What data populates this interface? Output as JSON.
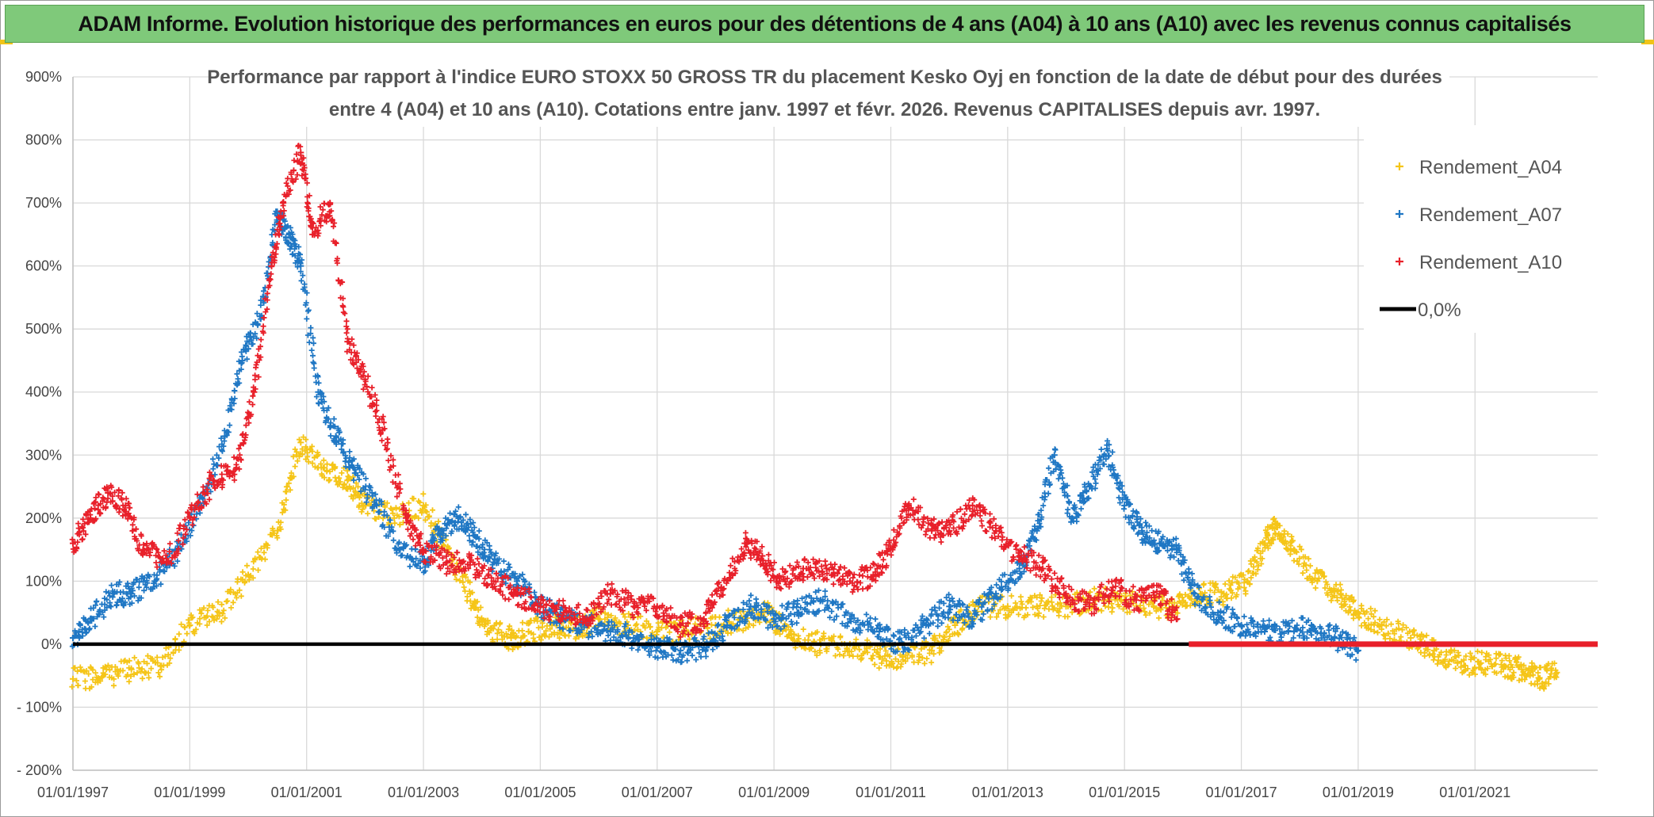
{
  "banner": {
    "title": "ADAM Informe. Evolution historique des performances en euros pour des détentions de 4 ans (A04) à 10 ans (A10) avec les revenus connus capitalisés"
  },
  "chart_data": {
    "type": "scatter",
    "title_line1": "Performance par rapport à l'indice EURO STOXX 50 GROSS TR  du placement Kesko Oyj en fonction de la date de début pour des durées",
    "title_line2": "entre 4 (A04) et 10 ans (A10). Cotations entre janv. 1997 et févr. 2026. Revenus CAPITALISES depuis avr. 1997.",
    "xlabel": "",
    "ylabel": "",
    "xlim": [
      1997.0,
      2023.1
    ],
    "ylim": [
      -200,
      900
    ],
    "y_ticks": [
      -200,
      -100,
      0,
      100,
      200,
      300,
      400,
      500,
      600,
      700,
      800,
      900
    ],
    "y_tick_labels": [
      "- 200%",
      "- 100%",
      "0%",
      "100%",
      "200%",
      "300%",
      "400%",
      "500%",
      "600%",
      "700%",
      "800%",
      "900%"
    ],
    "x_ticks": [
      1997,
      1999,
      2001,
      2003,
      2005,
      2007,
      2009,
      2011,
      2013,
      2015,
      2017,
      2019,
      2021
    ],
    "x_tick_labels": [
      "01/01/1997",
      "01/01/1999",
      "01/01/2001",
      "01/01/2003",
      "01/01/2005",
      "01/01/2007",
      "01/01/2009",
      "01/01/2011",
      "01/01/2013",
      "01/01/2015",
      "01/01/2017",
      "01/01/2019",
      "01/01/2021"
    ],
    "grid": true,
    "legend_position": "top-right",
    "series": [
      {
        "name": "Rendement_A04",
        "color": "#f5c518",
        "marker": "plus",
        "x": [
          1997.0,
          1997.5,
          1998.0,
          1998.5,
          1999.0,
          1999.5,
          2000.0,
          2000.5,
          2000.9,
          2001.3,
          2001.7,
          2002.0,
          2002.5,
          2003.0,
          2003.4,
          2003.8,
          2004.1,
          2004.5,
          2004.8,
          2005.2,
          2005.6,
          2006.0,
          2006.5,
          2007.0,
          2007.5,
          2008.0,
          2008.5,
          2008.9,
          2009.3,
          2009.8,
          2010.3,
          2010.8,
          2011.2,
          2011.7,
          2012.1,
          2012.5,
          2013.0,
          2013.5,
          2014.0,
          2014.5,
          2015.0,
          2015.5,
          2015.9,
          2016.3,
          2016.7,
          2017.1,
          2017.4,
          2017.6,
          2017.9,
          2018.3,
          2018.7,
          2019.0,
          2019.4,
          2019.9,
          2020.3,
          2020.7,
          2021.1,
          2021.5,
          2021.8,
          2022.1,
          2022.4
        ],
        "y": [
          -55,
          -52,
          -40,
          -35,
          30,
          50,
          110,
          180,
          320,
          280,
          260,
          220,
          200,
          220,
          150,
          80,
          20,
          10,
          20,
          30,
          25,
          40,
          30,
          20,
          20,
          30,
          40,
          50,
          10,
          0,
          0,
          -20,
          -20,
          -10,
          30,
          60,
          60,
          60,
          60,
          70,
          70,
          60,
          60,
          80,
          80,
          100,
          160,
          190,
          150,
          100,
          80,
          50,
          30,
          10,
          -10,
          -30,
          -30,
          -35,
          -40,
          -55,
          -45
        ]
      },
      {
        "name": "Rendement_A07",
        "color": "#1f77c4",
        "marker": "plus",
        "x": [
          1997.0,
          1997.3,
          1997.7,
          1998.0,
          1998.4,
          1998.8,
          1999.2,
          1999.6,
          1999.9,
          2000.2,
          2000.5,
          2000.7,
          2000.9,
          2001.2,
          2001.5,
          2001.8,
          2002.2,
          2002.6,
          2003.0,
          2003.3,
          2003.6,
          2003.9,
          2004.2,
          2004.6,
          2005.0,
          2005.4,
          2005.8,
          2006.2,
          2006.6,
          2007.0,
          2007.4,
          2007.8,
          2008.2,
          2008.6,
          2009.0,
          2009.4,
          2009.8,
          2010.3,
          2010.8,
          2011.2,
          2011.6,
          2012.0,
          2012.4,
          2012.8,
          2013.2,
          2013.5,
          2013.8,
          2014.1,
          2014.4,
          2014.7,
          2015.0,
          2015.3,
          2015.6,
          2015.9,
          2016.2,
          2016.6,
          2017.0,
          2017.4,
          2017.8,
          2018.2,
          2018.6,
          2019.0
        ],
        "y": [
          10,
          40,
          80,
          80,
          100,
          150,
          220,
          330,
          450,
          520,
          680,
          650,
          600,
          400,
          330,
          280,
          220,
          150,
          130,
          180,
          200,
          170,
          130,
          100,
          60,
          40,
          30,
          20,
          10,
          -5,
          -10,
          -5,
          30,
          60,
          40,
          50,
          70,
          40,
          20,
          0,
          30,
          60,
          40,
          80,
          120,
          180,
          300,
          200,
          250,
          310,
          220,
          180,
          160,
          150,
          80,
          50,
          30,
          20,
          20,
          30,
          10,
          -10
        ]
      },
      {
        "name": "Rendement_A10",
        "color": "#e8202a",
        "marker": "plus",
        "x": [
          1997.0,
          1997.3,
          1997.6,
          1997.9,
          1998.2,
          1998.6,
          1999.0,
          1999.4,
          1999.8,
          2000.1,
          2000.4,
          2000.6,
          2000.9,
          2001.1,
          2001.4,
          2001.7,
          2002.0,
          2002.3,
          2002.7,
          2003.0,
          2003.4,
          2003.8,
          2004.2,
          2004.6,
          2005.0,
          2005.4,
          2005.8,
          2006.2,
          2006.6,
          2007.0,
          2007.4,
          2007.8,
          2008.1,
          2008.5,
          2008.8,
          2009.1,
          2009.5,
          2009.9,
          2010.3,
          2010.7,
          2011.0,
          2011.3,
          2011.7,
          2012.0,
          2012.4,
          2012.8,
          2013.2,
          2013.6,
          2014.0,
          2014.4,
          2014.8,
          2015.2,
          2015.6,
          2015.9
        ],
        "y": [
          160,
          200,
          240,
          220,
          150,
          130,
          200,
          260,
          280,
          400,
          600,
          700,
          780,
          650,
          700,
          480,
          420,
          340,
          200,
          150,
          130,
          130,
          100,
          80,
          60,
          50,
          40,
          80,
          60,
          60,
          30,
          40,
          90,
          160,
          140,
          100,
          120,
          120,
          100,
          110,
          150,
          220,
          180,
          180,
          220,
          180,
          140,
          120,
          80,
          60,
          90,
          70,
          80,
          40
        ]
      },
      {
        "name": "Rendement_A10",
        "color": "#e8202a",
        "marker": "dense-band",
        "x": [
          2016.1,
          2023.1
        ],
        "y": [
          0,
          0
        ]
      },
      {
        "name": "0,0%",
        "color": "#000000",
        "marker": "line",
        "x": [
          1997.0,
          2023.1
        ],
        "y": [
          0,
          0
        ]
      }
    ],
    "legend": [
      {
        "label": "Rendement_A04",
        "color": "#f5c518",
        "marker": "plus"
      },
      {
        "label": "Rendement_A07",
        "color": "#1f77c4",
        "marker": "plus"
      },
      {
        "label": "Rendement_A10",
        "color": "#e8202a",
        "marker": "plus"
      },
      {
        "label": "0,0%",
        "color": "#000000",
        "marker": "line"
      }
    ]
  }
}
